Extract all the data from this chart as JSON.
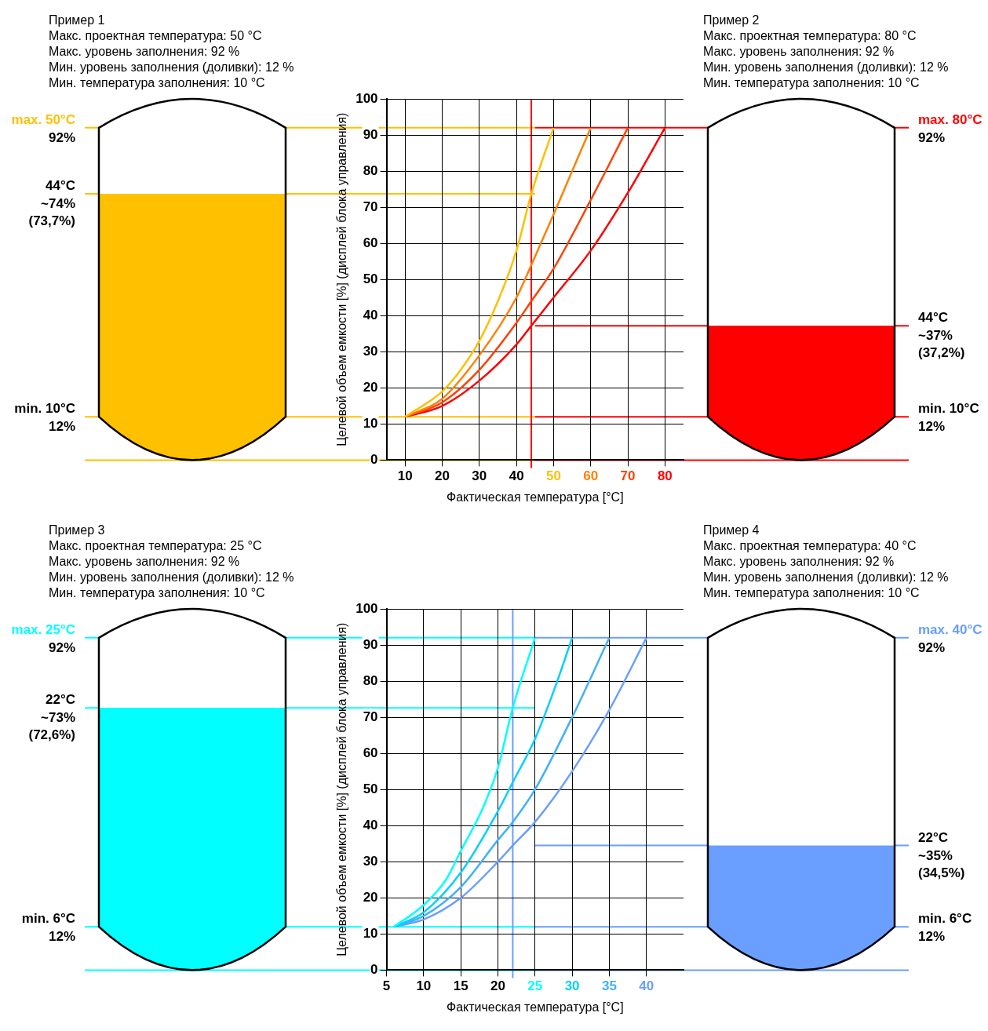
{
  "chart_data": [
    {
      "type": "line",
      "xlabel": "Фактическая температура [°C]",
      "ylabel": "Целевой объем емкости [%] (дисплей блока управления)",
      "xlim": [
        5,
        85
      ],
      "ylim": [
        0,
        100
      ],
      "xticks": [
        10,
        20,
        30,
        40,
        50,
        60,
        70,
        80
      ],
      "yticks": [
        0,
        10,
        20,
        30,
        40,
        50,
        60,
        70,
        80,
        90,
        100
      ],
      "grid": true,
      "marker": "none",
      "series": [
        {
          "color": "#ffc000",
          "x": [
            10,
            20,
            25,
            30,
            35,
            40,
            44,
            50
          ],
          "values": [
            12,
            19,
            25,
            33,
            44,
            58,
            73.7,
            92
          ]
        },
        {
          "color": "#ff8000",
          "x": [
            10,
            20,
            30,
            40,
            44,
            50,
            55,
            60
          ],
          "values": [
            12,
            17,
            29,
            45,
            54,
            68,
            80,
            92
          ]
        },
        {
          "color": "#ff4000",
          "x": [
            10,
            20,
            30,
            40,
            44,
            50,
            60,
            70
          ],
          "values": [
            12,
            16,
            25,
            38,
            44,
            53,
            72,
            92
          ]
        },
        {
          "color": "#ff0000",
          "x": [
            10,
            20,
            30,
            40,
            44,
            50,
            60,
            70,
            80
          ],
          "values": [
            12,
            15,
            22,
            32,
            37.2,
            45,
            58,
            74,
            92
          ]
        }
      ],
      "ref_lines": [
        {
          "axis": "y",
          "value": 92,
          "label": "max. 50°C\n92%",
          "color": "#ffc000"
        },
        {
          "axis": "y",
          "value": 73.7,
          "label": "44°C\n~74%\n(73,7%)",
          "color": "#ffc000"
        },
        {
          "axis": "y",
          "value": 12,
          "label": "min. 10°C\n12%",
          "color": "#ffc000"
        },
        {
          "axis": "y",
          "value": 0,
          "color": "#ffc000"
        },
        {
          "axis": "y",
          "value": 92,
          "label": "max. 80°C\n92%",
          "color": "#ff0000"
        },
        {
          "axis": "y",
          "value": 37.2,
          "label": "44°C\n~37%\n(37,2%)",
          "color": "#ff0000"
        },
        {
          "axis": "y",
          "value": 12,
          "label": "min. 10°C\n12%",
          "color": "#ff0000"
        },
        {
          "axis": "y",
          "value": 0,
          "color": "#ff0000"
        },
        {
          "axis": "x",
          "value": 44,
          "color": "#ff0000"
        }
      ],
      "annotations": [
        "Пример 1",
        "Макс. проектная температура: 50 °C",
        "Макс. уровень заполнения: 92 %",
        "Мин. уровень заполнения (доливки): 12 %",
        "Мин. температура заполнения: 10 °C",
        "Пример 2",
        "Макс. проектная температура: 80 °C",
        "Макс. уровень заполнения: 92 %",
        "Мин. уровень заполнения (доливки): 12 %",
        "Мин. температура заполнения: 10 °C"
      ]
    },
    {
      "type": "line",
      "xlabel": "Фактическая температура [°C]",
      "ylabel": "Целевой объем емкости [%] (дисплей блока управления)",
      "xlim": [
        5,
        45
      ],
      "ylim": [
        0,
        100
      ],
      "xticks": [
        5,
        10,
        15,
        20,
        25,
        30,
        35,
        40
      ],
      "yticks": [
        0,
        10,
        20,
        30,
        40,
        50,
        60,
        70,
        80,
        90,
        100
      ],
      "grid": true,
      "marker": "none",
      "series": [
        {
          "color": "#00ffff",
          "x": [
            6,
            10,
            13,
            15,
            18,
            20,
            22,
            25
          ],
          "values": [
            12,
            18,
            25,
            33,
            45,
            56,
            72.6,
            92
          ]
        },
        {
          "color": "#00d0ff",
          "x": [
            6,
            10,
            15,
            20,
            22,
            25,
            28,
            30
          ],
          "values": [
            12,
            16,
            27,
            44,
            52,
            64,
            80,
            92
          ]
        },
        {
          "color": "#40b0ff",
          "x": [
            6,
            10,
            15,
            20,
            22,
            25,
            30,
            35
          ],
          "values": [
            12,
            15,
            23,
            36,
            41,
            50,
            70,
            92
          ]
        },
        {
          "color": "#6a9eff",
          "x": [
            6,
            10,
            15,
            20,
            22,
            25,
            30,
            35,
            40
          ],
          "values": [
            12,
            14,
            20,
            30,
            34.5,
            41,
            55,
            72,
            92
          ]
        }
      ],
      "ref_lines": [
        {
          "axis": "y",
          "value": 92,
          "label": "max. 25°C\n92%",
          "color": "#00ffff"
        },
        {
          "axis": "y",
          "value": 72.6,
          "label": "22°C\n~73%\n(72,6%)",
          "color": "#00ffff"
        },
        {
          "axis": "y",
          "value": 12,
          "label": "min. 6°C\n12%",
          "color": "#00ffff"
        },
        {
          "axis": "y",
          "value": 0,
          "color": "#00ffff"
        },
        {
          "axis": "y",
          "value": 92,
          "label": "max. 40°C\n92%",
          "color": "#6a9eff"
        },
        {
          "axis": "y",
          "value": 34.5,
          "label": "22°C\n~35%\n(34,5%)",
          "color": "#6a9eff"
        },
        {
          "axis": "y",
          "value": 12,
          "label": "min. 6°C\n12%",
          "color": "#6a9eff"
        },
        {
          "axis": "y",
          "value": 0,
          "color": "#6a9eff"
        },
        {
          "axis": "x",
          "value": 22,
          "color": "#6a9eff"
        }
      ],
      "annotations": [
        "Пример 3",
        "Макс. проектная температура: 25 °C",
        "Макс. уровень заполнения: 92 %",
        "Мин. уровень заполнения (доливки): 12 %",
        "Мин. температура заполнения: 10 °C",
        "Пример 4",
        "Макс. проектная температура: 40 °C",
        "Макс. уровень заполнения: 92 %",
        "Мин. уровень заполнения (доливки): 12 %",
        "Мин. температура заполнения: 10 °C"
      ]
    }
  ]
}
